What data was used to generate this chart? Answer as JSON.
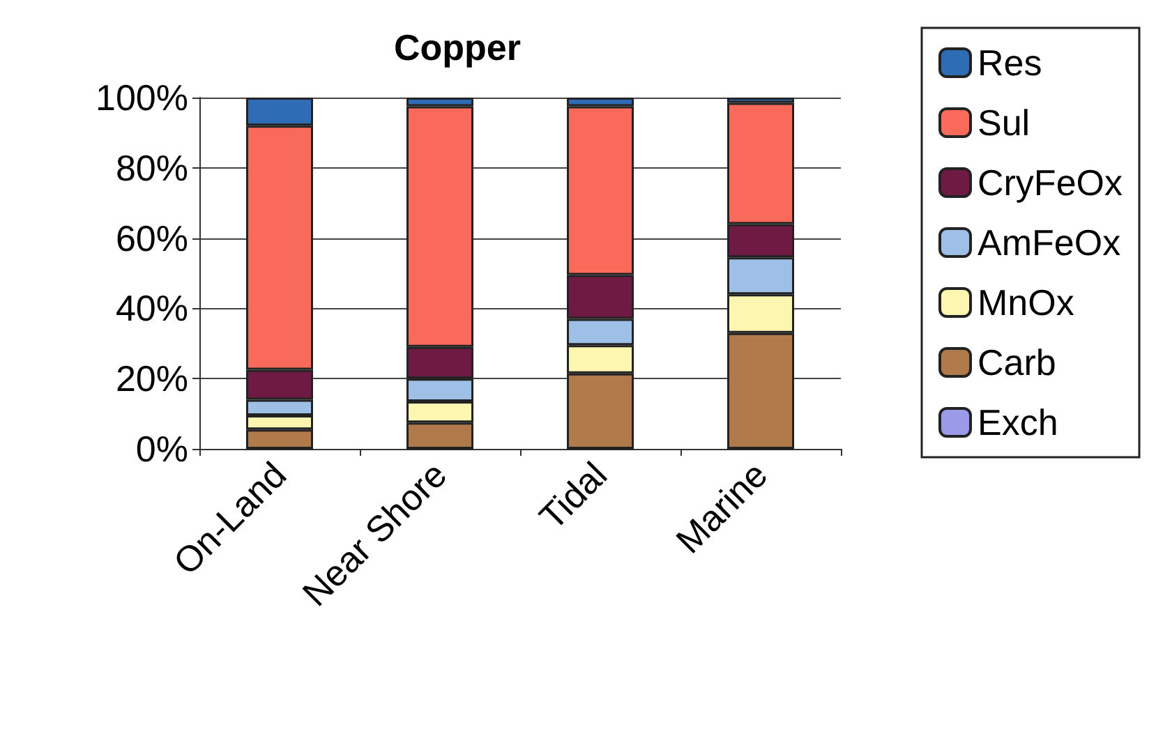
{
  "chart_data": {
    "type": "bar",
    "title": "Copper",
    "stacked": true,
    "categories": [
      "On-Land",
      "Near Shore",
      "Tidal",
      "Marine"
    ],
    "series": [
      {
        "name": "Exch",
        "color": "#9a9ae8",
        "values": [
          0,
          0,
          0,
          0
        ]
      },
      {
        "name": "Carb",
        "color": "#b07a4a",
        "values": [
          5.5,
          7.5,
          21.5,
          33
        ]
      },
      {
        "name": "MnOx",
        "color": "#fcf6b0",
        "values": [
          4,
          6,
          8,
          11
        ]
      },
      {
        "name": "AmFeOx",
        "color": "#9fc0e6",
        "values": [
          4.5,
          6.5,
          7.5,
          10.5
        ]
      },
      {
        "name": "CryFeOx",
        "color": "#6e1a42",
        "values": [
          8.5,
          9,
          12.5,
          9.5
        ]
      },
      {
        "name": "Sul",
        "color": "#fa6a5a",
        "values": [
          69.5,
          68.5,
          48,
          34.5
        ]
      },
      {
        "name": "Res",
        "color": "#2e6db5",
        "values": [
          8,
          2.5,
          2.5,
          1.5
        ]
      }
    ],
    "ylim": [
      0,
      100
    ],
    "yticks": [
      {
        "value": 0,
        "label": "0%"
      },
      {
        "value": 20,
        "label": "20%"
      },
      {
        "value": 40,
        "label": "40%"
      },
      {
        "value": 60,
        "label": "60%"
      },
      {
        "value": 80,
        "label": "80%"
      },
      {
        "value": 100,
        "label": "100%"
      }
    ],
    "grid": "y",
    "legend": "right"
  }
}
